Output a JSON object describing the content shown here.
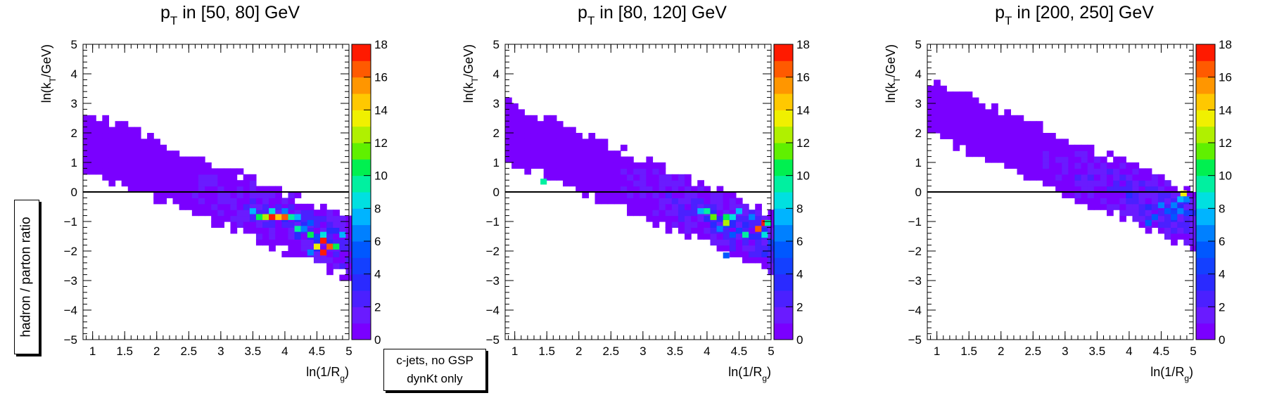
{
  "y_side_label": "hadron / parton ratio",
  "sample_box": {
    "line1": "c-jets, no GSP",
    "line2": "dynKt only"
  },
  "chart_data": [
    {
      "type": "heatmap",
      "title": "pT in [50, 80] GeV",
      "title_main": "p",
      "title_sub": "T",
      "title_rest": " in [50, 80] GeV",
      "xlabel": "ln(1/Rg)",
      "xlabel_main": "ln(1/R",
      "xlabel_sub": "g",
      "xlabel_end": ")",
      "ylabel": "ln(kT/GeV)",
      "ylabel_main": "ln(k",
      "ylabel_sub": "T",
      "ylabel_end": "/GeV)",
      "xlim": [
        0.85,
        5.0
      ],
      "ylim": [
        -5,
        5
      ],
      "xticks": [
        1,
        1.5,
        2,
        2.5,
        3,
        3.5,
        4,
        4.5,
        5
      ],
      "xtick_labels": [
        "1",
        "1.5",
        "2",
        "2.5",
        "3",
        "3.5",
        "4",
        "4.5",
        "5"
      ],
      "yticks": [
        -5,
        -4,
        -3,
        -2,
        -1,
        0,
        1,
        2,
        3,
        4,
        5
      ],
      "ytick_labels": [
        "−5",
        "−4",
        "−3",
        "−2",
        "−1",
        "0",
        "1",
        "2",
        "3",
        "4",
        "5"
      ],
      "zlim": [
        0,
        18
      ],
      "zticks": [
        0,
        2,
        4,
        6,
        8,
        10,
        12,
        14,
        16,
        18
      ],
      "ztick_labels": [
        "0",
        "2",
        "4",
        "6",
        "8",
        "10",
        "12",
        "14",
        "16",
        "18"
      ],
      "reference_line_y": 0,
      "band": {
        "x_start": 0.85,
        "x_end": 5.0,
        "center_start": 1.75,
        "center_end": -1.95,
        "half_width": 1.1
      },
      "hot_cells": [
        {
          "x": 3.6,
          "y": -0.85,
          "z": 10
        },
        {
          "x": 3.7,
          "y": -0.85,
          "z": 12
        },
        {
          "x": 3.8,
          "y": -0.85,
          "z": 17
        },
        {
          "x": 3.9,
          "y": -0.85,
          "z": 14
        },
        {
          "x": 4.0,
          "y": -0.85,
          "z": 16
        },
        {
          "x": 4.1,
          "y": -0.85,
          "z": 9
        },
        {
          "x": 4.2,
          "y": -0.85,
          "z": 7
        },
        {
          "x": 3.5,
          "y": -0.65,
          "z": 7
        },
        {
          "x": 3.8,
          "y": -0.65,
          "z": 8
        },
        {
          "x": 4.0,
          "y": -0.65,
          "z": 6
        },
        {
          "x": 4.4,
          "y": -1.05,
          "z": 5
        },
        {
          "x": 4.2,
          "y": -1.25,
          "z": 9
        },
        {
          "x": 4.3,
          "y": -1.25,
          "z": 6
        },
        {
          "x": 4.4,
          "y": -1.45,
          "z": 10
        },
        {
          "x": 4.6,
          "y": -1.45,
          "z": 8
        },
        {
          "x": 4.9,
          "y": -1.45,
          "z": 7
        },
        {
          "x": 4.6,
          "y": -1.65,
          "z": 17
        },
        {
          "x": 4.5,
          "y": -1.85,
          "z": 13
        },
        {
          "x": 4.7,
          "y": -1.85,
          "z": 16
        },
        {
          "x": 4.8,
          "y": -1.85,
          "z": 10
        },
        {
          "x": 4.6,
          "y": -2.05,
          "z": 17
        },
        {
          "x": 4.4,
          "y": -2.05,
          "z": 6
        }
      ]
    },
    {
      "type": "heatmap",
      "title": "pT in [80, 120] GeV",
      "title_main": "p",
      "title_sub": "T",
      "title_rest": " in [80, 120] GeV",
      "xlabel": "ln(1/Rg)",
      "xlabel_main": "ln(1/R",
      "xlabel_sub": "g",
      "xlabel_end": ")",
      "ylabel": "ln(kT/GeV)",
      "ylabel_main": "ln(k",
      "ylabel_sub": "T",
      "ylabel_end": "/GeV)",
      "xlim": [
        0.85,
        5.0
      ],
      "ylim": [
        -5,
        5
      ],
      "xticks": [
        1,
        1.5,
        2,
        2.5,
        3,
        3.5,
        4,
        4.5,
        5
      ],
      "xtick_labels": [
        "1",
        "1.5",
        "2",
        "2.5",
        "3",
        "3.5",
        "4",
        "4.5",
        "5"
      ],
      "yticks": [
        -5,
        -4,
        -3,
        -2,
        -1,
        0,
        1,
        2,
        3,
        4,
        5
      ],
      "ytick_labels": [
        "−5",
        "−4",
        "−3",
        "−2",
        "−1",
        "0",
        "1",
        "2",
        "3",
        "4",
        "5"
      ],
      "zlim": [
        0,
        18
      ],
      "zticks": [
        0,
        2,
        4,
        6,
        8,
        10,
        12,
        14,
        16,
        18
      ],
      "ztick_labels": [
        "0",
        "2",
        "4",
        "6",
        "8",
        "10",
        "12",
        "14",
        "16",
        "18"
      ],
      "reference_line_y": 0,
      "band": {
        "x_start": 0.85,
        "x_end": 5.0,
        "center_start": 2.05,
        "center_end": -1.75,
        "half_width": 1.1
      },
      "hot_cells": [
        {
          "x": 1.45,
          "y": 0.35,
          "z": 9
        },
        {
          "x": 3.9,
          "y": -0.65,
          "z": 7
        },
        {
          "x": 4.0,
          "y": -0.65,
          "z": 9
        },
        {
          "x": 4.1,
          "y": -0.85,
          "z": 11
        },
        {
          "x": 4.3,
          "y": -0.85,
          "z": 10
        },
        {
          "x": 4.4,
          "y": -0.85,
          "z": 8
        },
        {
          "x": 4.5,
          "y": -0.65,
          "z": 7
        },
        {
          "x": 4.7,
          "y": -0.85,
          "z": 6
        },
        {
          "x": 4.9,
          "y": -1.05,
          "z": 17
        },
        {
          "x": 4.95,
          "y": -1.05,
          "z": 9
        },
        {
          "x": 4.3,
          "y": -1.05,
          "z": 12
        },
        {
          "x": 4.2,
          "y": -1.25,
          "z": 6
        },
        {
          "x": 4.8,
          "y": -1.25,
          "z": 16
        },
        {
          "x": 4.6,
          "y": -1.45,
          "z": 9
        },
        {
          "x": 4.9,
          "y": -1.45,
          "z": 8
        },
        {
          "x": 4.4,
          "y": -1.45,
          "z": 5
        },
        {
          "x": 4.3,
          "y": -2.15,
          "z": 5
        }
      ]
    },
    {
      "type": "heatmap",
      "title": "pT in [200, 250] GeV",
      "title_main": "p",
      "title_sub": "T",
      "title_rest": " in [200, 250] GeV",
      "xlabel": "ln(1/Rg)",
      "xlabel_main": "ln(1/R",
      "xlabel_sub": "g",
      "xlabel_end": ")",
      "ylabel": "ln(kT/GeV)",
      "ylabel_main": "ln(k",
      "ylabel_sub": "T",
      "ylabel_end": "/GeV)",
      "xlim": [
        0.85,
        5.0
      ],
      "ylim": [
        -5,
        5
      ],
      "xticks": [
        1,
        1.5,
        2,
        2.5,
        3,
        3.5,
        4,
        4.5,
        5
      ],
      "xtick_labels": [
        "1",
        "1.5",
        "2",
        "2.5",
        "3",
        "3.5",
        "4",
        "4.5",
        "5"
      ],
      "yticks": [
        -5,
        -4,
        -3,
        -2,
        -1,
        0,
        1,
        2,
        3,
        4,
        5
      ],
      "ytick_labels": [
        "−5",
        "−4",
        "−3",
        "−2",
        "−1",
        "0",
        "1",
        "2",
        "3",
        "4",
        "5"
      ],
      "zlim": [
        0,
        18
      ],
      "zticks": [
        0,
        2,
        4,
        6,
        8,
        10,
        12,
        14,
        16,
        18
      ],
      "ztick_labels": [
        "0",
        "2",
        "4",
        "6",
        "8",
        "10",
        "12",
        "14",
        "16",
        "18"
      ],
      "reference_line_y": 0,
      "band": {
        "x_start": 0.85,
        "x_end": 5.0,
        "center_start": 2.85,
        "center_end": -1.0,
        "half_width": 1.05
      },
      "hot_cells": [
        {
          "x": 4.85,
          "y": -0.05,
          "z": 13
        },
        {
          "x": 4.8,
          "y": -0.25,
          "z": 7
        },
        {
          "x": 4.9,
          "y": -0.25,
          "z": 6
        },
        {
          "x": 4.5,
          "y": -0.45,
          "z": 6
        },
        {
          "x": 4.7,
          "y": -0.45,
          "z": 6
        },
        {
          "x": 4.8,
          "y": -0.65,
          "z": 6
        },
        {
          "x": 4.6,
          "y": -0.65,
          "z": 5
        },
        {
          "x": 4.4,
          "y": -0.85,
          "z": 5
        },
        {
          "x": 4.7,
          "y": -0.85,
          "z": 5
        },
        {
          "x": 4.3,
          "y": -1.05,
          "z": 5
        }
      ]
    }
  ]
}
